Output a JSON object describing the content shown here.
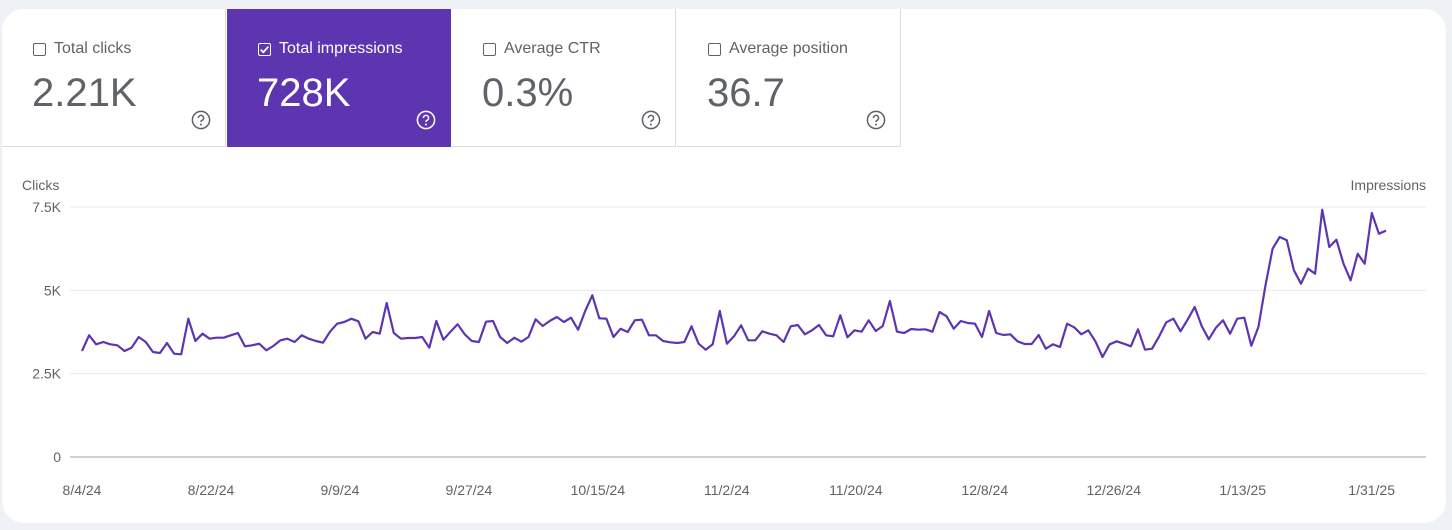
{
  "metrics": [
    {
      "label": "Total clicks",
      "value": "2.21K",
      "checked": false
    },
    {
      "label": "Total impressions",
      "value": "728K",
      "checked": true
    },
    {
      "label": "Average CTR",
      "value": "0.3%",
      "checked": false
    },
    {
      "label": "Average position",
      "value": "36.7",
      "checked": false
    }
  ],
  "icons": {
    "help": "help-circle-icon",
    "checkbox": "checkbox-icon",
    "check": "check-icon"
  },
  "colors": {
    "accent": "#5e35b1",
    "line": "#5e35b1",
    "text": "#5f6368",
    "grid": "#e8eaed"
  },
  "chart_data": {
    "type": "line",
    "left_axis_title": "Clicks",
    "right_axis_title": "Impressions",
    "y_ticks": [
      "0",
      "2.5K",
      "5K",
      "7.5K"
    ],
    "ylim": [
      0,
      7500
    ],
    "x_ticks": [
      "8/4/24",
      "8/22/24",
      "9/9/24",
      "9/27/24",
      "10/15/24",
      "11/2/24",
      "11/20/24",
      "12/8/24",
      "12/26/24",
      "1/13/25",
      "1/31/25"
    ],
    "x_start": "2024-08-04",
    "x_end": "2025-02-02",
    "grid": true,
    "series": [
      {
        "name": "Impressions",
        "color": "#5e35b1",
        "values": [
          3180,
          3650,
          3380,
          3450,
          3380,
          3350,
          3180,
          3280,
          3600,
          3450,
          3150,
          3120,
          3420,
          3100,
          3080,
          4150,
          3480,
          3700,
          3550,
          3580,
          3580,
          3650,
          3720,
          3320,
          3350,
          3400,
          3200,
          3330,
          3500,
          3550,
          3450,
          3650,
          3550,
          3480,
          3430,
          3760,
          4000,
          4050,
          4150,
          4070,
          3550,
          3750,
          3700,
          4620,
          3720,
          3550,
          3570,
          3570,
          3600,
          3280,
          4080,
          3520,
          3760,
          3980,
          3680,
          3480,
          3450,
          4060,
          4080,
          3600,
          3420,
          3580,
          3460,
          3600,
          4130,
          3930,
          4080,
          4200,
          4050,
          4180,
          3820,
          4380,
          4850,
          4160,
          4150,
          3600,
          3850,
          3750,
          4100,
          4120,
          3650,
          3650,
          3480,
          3440,
          3420,
          3450,
          3920,
          3400,
          3220,
          3380,
          4380,
          3400,
          3620,
          3950,
          3500,
          3500,
          3770,
          3700,
          3650,
          3450,
          3920,
          3960,
          3680,
          3800,
          3960,
          3650,
          3620,
          4250,
          3590,
          3800,
          3760,
          4100,
          3780,
          3930,
          4680,
          3760,
          3720,
          3840,
          3820,
          3830,
          3760,
          4350,
          4220,
          3850,
          4080,
          4020,
          4000,
          3600,
          4380,
          3720,
          3660,
          3680,
          3470,
          3390,
          3390,
          3660,
          3250,
          3380,
          3300,
          4000,
          3890,
          3680,
          3800,
          3470,
          3000,
          3380,
          3470,
          3400,
          3320,
          3830,
          3220,
          3250,
          3620,
          4040,
          4150,
          3770,
          4120,
          4500,
          3930,
          3530,
          3880,
          4100,
          3700,
          4150,
          4180,
          3340,
          3900,
          5150,
          6250,
          6600,
          6500,
          5600,
          5200,
          5650,
          5500,
          7420,
          6300,
          6520,
          5800,
          5300,
          6100,
          5800,
          7320,
          6700,
          6790
        ]
      }
    ]
  }
}
